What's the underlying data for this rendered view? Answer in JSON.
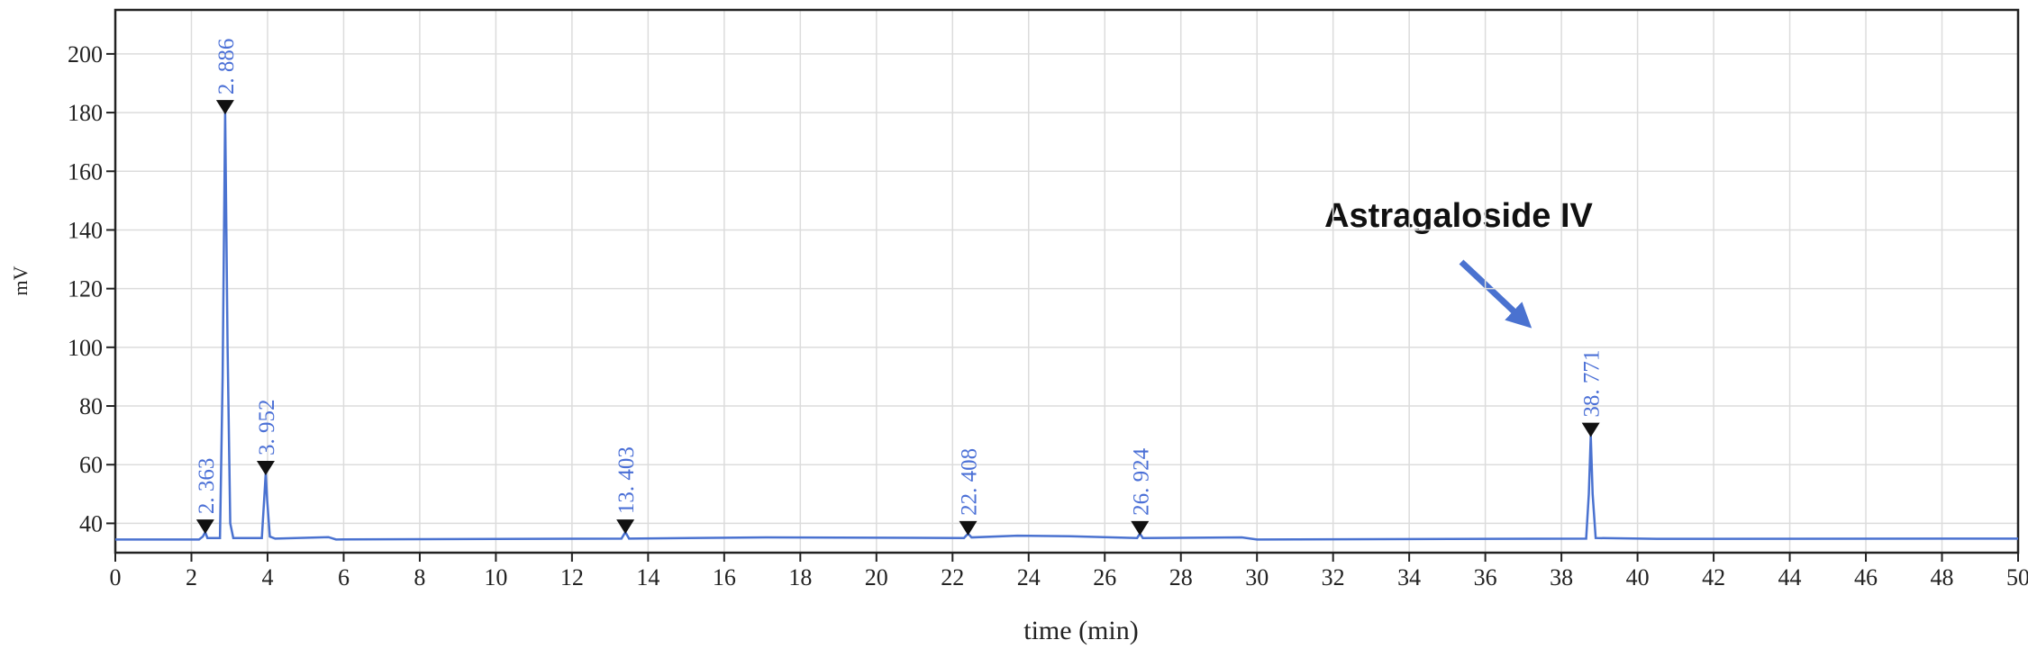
{
  "chart_data": {
    "type": "line",
    "x_label": "time (min)",
    "y_label": "mV",
    "annotation": "Astragaloside IV",
    "xlim": [
      0,
      50
    ],
    "xticks": [
      0,
      2,
      4,
      6,
      8,
      10,
      12,
      14,
      16,
      18,
      20,
      22,
      24,
      26,
      28,
      30,
      32,
      34,
      36,
      38,
      40,
      42,
      44,
      46,
      48,
      50
    ],
    "ylim": [
      30,
      215
    ],
    "yticks": [
      40,
      60,
      80,
      100,
      120,
      140,
      160,
      180,
      200
    ],
    "grid": true,
    "color": "#4a72d0",
    "x": [
      0,
      2.2,
      2.3,
      2.363,
      2.42,
      2.75,
      2.82,
      2.886,
      2.95,
      3.02,
      3.1,
      3.85,
      3.92,
      3.952,
      3.99,
      4.06,
      4.2,
      5.6,
      5.8,
      13.3,
      13.403,
      13.5,
      17.1,
      22.3,
      22.408,
      22.5,
      23.7,
      25.1,
      26.85,
      26.924,
      27.0,
      29.6,
      30,
      38.65,
      38.72,
      38.771,
      38.82,
      38.9,
      40.5,
      50
    ],
    "values": [
      34.5,
      34.5,
      35.5,
      37,
      35,
      35,
      90,
      180,
      100,
      40,
      35,
      35,
      50,
      57,
      48,
      35.5,
      34.8,
      35.3,
      34.5,
      34.8,
      37,
      34.8,
      35.2,
      35,
      36.5,
      35.2,
      35.8,
      35.6,
      35,
      36.5,
      35,
      35.2,
      34.5,
      34.8,
      50,
      70,
      50,
      35,
      34.7,
      34.8
    ],
    "peaks": [
      {
        "label": "2. 363",
        "x": 2.363,
        "y": 37
      },
      {
        "label": "2. 886",
        "x": 2.886,
        "y": 180
      },
      {
        "label": "3. 952",
        "x": 3.952,
        "y": 57
      },
      {
        "label": "13. 403",
        "x": 13.403,
        "y": 37
      },
      {
        "label": "22. 408",
        "x": 22.408,
        "y": 36.5
      },
      {
        "label": "26. 924",
        "x": 26.924,
        "y": 36.5
      },
      {
        "label": "38. 771",
        "x": 38.771,
        "y": 70
      }
    ]
  }
}
